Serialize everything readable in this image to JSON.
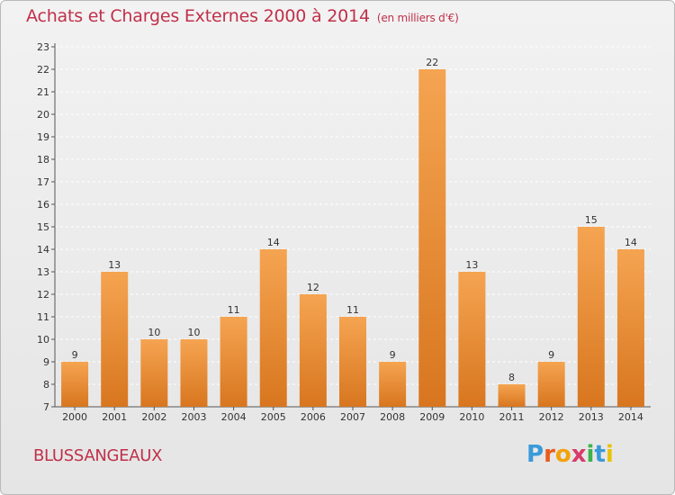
{
  "title": "Achats et Charges Externes 2000 à 2014",
  "unit": "(en milliers d'€)",
  "town": "BLUSSANGEAUX",
  "logo": {
    "letters": [
      "P",
      "r",
      "o",
      "x",
      "i",
      "t",
      "i"
    ],
    "colors": [
      "#3a9ad9",
      "#e85c1e",
      "#f2a20c",
      "#d93a6a",
      "#3db34a",
      "#3a9ad9",
      "#e8c10c"
    ]
  },
  "colors": {
    "bar_top": "#f5a451",
    "bar_bottom": "#d8761f",
    "title": "#c0304a",
    "grid": "#ffffff"
  },
  "chart_data": {
    "type": "bar",
    "categories": [
      "2000",
      "2001",
      "2002",
      "2003",
      "2004",
      "2005",
      "2006",
      "2007",
      "2008",
      "2009",
      "2010",
      "2011",
      "2012",
      "2013",
      "2014"
    ],
    "values": [
      9,
      13,
      10,
      10,
      11,
      14,
      12,
      11,
      9,
      22,
      13,
      8,
      9,
      15,
      14
    ],
    "ylim": [
      7,
      23
    ],
    "yticks": [
      7,
      8,
      9,
      10,
      11,
      12,
      13,
      14,
      15,
      16,
      17,
      18,
      19,
      20,
      21,
      22,
      23
    ],
    "grid": "horizontal dashed",
    "data_labels": true
  }
}
